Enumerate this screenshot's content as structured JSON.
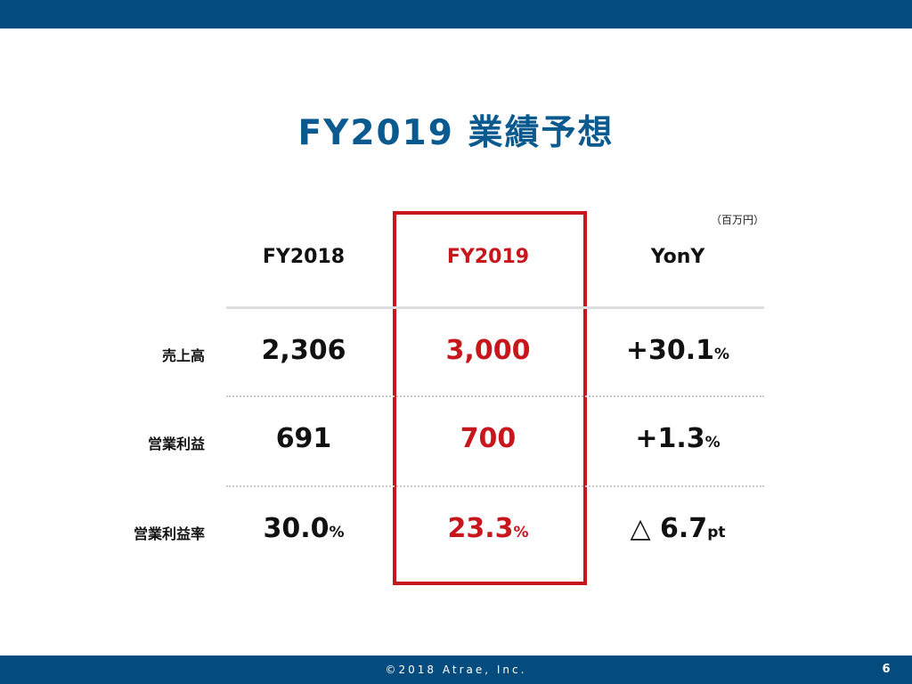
{
  "title": "FY2019 業績予想",
  "unit_note": "（百万円）",
  "columns": [
    "FY2018",
    "FY2019",
    "YonY"
  ],
  "rows": [
    {
      "label": "売上高",
      "fy2018": {
        "value": "2,306",
        "unit": ""
      },
      "fy2019": {
        "value": "3,000",
        "unit": ""
      },
      "yony": {
        "value": "+30.1",
        "unit": "%"
      }
    },
    {
      "label": "営業利益",
      "fy2018": {
        "value": "691",
        "unit": ""
      },
      "fy2019": {
        "value": "700",
        "unit": ""
      },
      "yony": {
        "value": "+1.3",
        "unit": "%"
      }
    },
    {
      "label": "営業利益率",
      "fy2018": {
        "value": "30.0",
        "unit": "%"
      },
      "fy2019": {
        "value": "23.3",
        "unit": "%"
      },
      "yony": {
        "value": "△ 6.7",
        "unit": "pt"
      }
    }
  ],
  "footer": {
    "copyright": "©2018 Atrae, Inc.",
    "page_number": "6"
  },
  "colors": {
    "brand_blue": "#054c7e",
    "title_blue": "#0b5a8f",
    "highlight_red": "#c8161d"
  }
}
